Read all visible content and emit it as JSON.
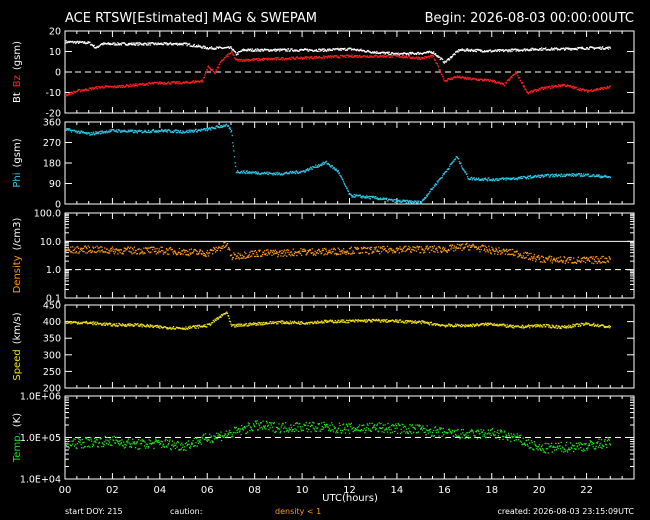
{
  "header": {
    "title": "ACE RTSW[Estimated] MAG & SWEPAM",
    "begin": "Begin: 2026-08-03 00:00:00UTC"
  },
  "x_axis": {
    "label": "UTC(hours)",
    "range": [
      0,
      24
    ],
    "ticks": [
      "00",
      "02",
      "04",
      "06",
      "08",
      "10",
      "12",
      "14",
      "16",
      "18",
      "20",
      "22"
    ]
  },
  "footer": {
    "start_doy": "start DOY: 215",
    "caution": "caution:",
    "density_note": "density < 1",
    "created": "created: 2026-08-03 23:15:09UTC"
  },
  "colors": {
    "bt": "#ffffff",
    "bz": "#ff2020",
    "phi": "#30c8e8",
    "density": "#ff9a1a",
    "speed": "#f0e020",
    "temp": "#20e020",
    "caution": "#ff9a1a",
    "axis": "#ffffff"
  },
  "panels": [
    {
      "id": "mag",
      "ylabel_parts": [
        {
          "text": "Bt",
          "color": "#ffffff"
        },
        {
          "text": "Bz",
          "color": "#ff2020"
        },
        {
          "text": "(gsm)",
          "color": "#ffffff"
        }
      ],
      "ticks": [
        "20",
        "10",
        "0",
        "-10",
        "-20"
      ],
      "scale": "linear",
      "ylim": [
        -20,
        20
      ],
      "dashed_lines": [
        0
      ]
    },
    {
      "id": "phi",
      "ylabel_parts": [
        {
          "text": "Phi",
          "color": "#30c8e8"
        },
        {
          "text": "(gsm)",
          "color": "#ffffff"
        }
      ],
      "ticks": [
        "360",
        "270",
        "180",
        "90",
        "0"
      ],
      "scale": "linear",
      "ylim": [
        0,
        360
      ],
      "dashed_lines": []
    },
    {
      "id": "density",
      "ylabel_parts": [
        {
          "text": "Density",
          "color": "#ff9a1a"
        },
        {
          "text": "(/cm3)",
          "color": "#ffffff"
        }
      ],
      "ticks": [
        "100.0",
        "10.0",
        "1.0",
        "0.1"
      ],
      "scale": "log",
      "ylim": [
        0.1,
        100
      ],
      "dashed_lines": [
        1
      ],
      "solid_lines": [
        10
      ]
    },
    {
      "id": "speed",
      "ylabel_parts": [
        {
          "text": "Speed",
          "color": "#f0e020"
        },
        {
          "text": "(km/s)",
          "color": "#ffffff"
        }
      ],
      "ticks": [
        "450",
        "400",
        "350",
        "300",
        "250",
        "200"
      ],
      "scale": "linear",
      "ylim": [
        200,
        450
      ],
      "dashed_lines": []
    },
    {
      "id": "temp",
      "ylabel_parts": [
        {
          "text": "Temp.",
          "color": "#20e020"
        },
        {
          "text": "(K)",
          "color": "#ffffff"
        }
      ],
      "ticks": [
        "1.0E+06",
        "1.0E+05",
        "1.0E+04"
      ],
      "scale": "log",
      "ylim": [
        10000,
        1000000
      ],
      "dashed_lines": [
        100000
      ]
    }
  ],
  "chart_data": {
    "type": "scatter",
    "x_unit": "UTC hours",
    "series": [
      {
        "name": "Bt",
        "panel": "mag",
        "color": "#ffffff",
        "points": [
          [
            0,
            15
          ],
          [
            1,
            14.5
          ],
          [
            1.3,
            12
          ],
          [
            1.5,
            14
          ],
          [
            2,
            14
          ],
          [
            3,
            14
          ],
          [
            4,
            14
          ],
          [
            5,
            14
          ],
          [
            5.5,
            13
          ],
          [
            6,
            12
          ],
          [
            6.5,
            12
          ],
          [
            7,
            12
          ],
          [
            7.2,
            9
          ],
          [
            7.5,
            11
          ],
          [
            8,
            11
          ],
          [
            9,
            11
          ],
          [
            10,
            11
          ],
          [
            11,
            11
          ],
          [
            12,
            11.5
          ],
          [
            13,
            10
          ],
          [
            14,
            9
          ],
          [
            15,
            9.5
          ],
          [
            15.5,
            10
          ],
          [
            16,
            5
          ],
          [
            16.3,
            8
          ],
          [
            16.6,
            11
          ],
          [
            17,
            11
          ],
          [
            18,
            10.5
          ],
          [
            19,
            11
          ],
          [
            20,
            11.5
          ],
          [
            21,
            11.5
          ],
          [
            22,
            12
          ],
          [
            23,
            12
          ]
        ]
      },
      {
        "name": "Bz",
        "panel": "mag",
        "color": "#ff2020",
        "points": [
          [
            0,
            -11
          ],
          [
            0.5,
            -9
          ],
          [
            1,
            -8
          ],
          [
            1.5,
            -7
          ],
          [
            2,
            -7
          ],
          [
            3,
            -6
          ],
          [
            4,
            -5
          ],
          [
            5,
            -5
          ],
          [
            5.8,
            -4
          ],
          [
            6,
            3
          ],
          [
            6.3,
            0
          ],
          [
            6.6,
            6
          ],
          [
            7,
            10
          ],
          [
            7.2,
            6
          ],
          [
            12,
            8
          ],
          [
            13,
            8
          ],
          [
            14,
            8
          ],
          [
            15,
            7
          ],
          [
            15.5,
            8
          ],
          [
            16,
            -4
          ],
          [
            16.5,
            -2
          ],
          [
            17,
            -3
          ],
          [
            18,
            -4
          ],
          [
            18.5,
            -6
          ],
          [
            19,
            0
          ],
          [
            19.5,
            -10
          ],
          [
            20,
            -8
          ],
          [
            21,
            -6
          ],
          [
            22,
            -9
          ],
          [
            23,
            -7
          ]
        ]
      },
      {
        "name": "Phi",
        "panel": "phi",
        "color": "#30c8e8",
        "points": [
          [
            0,
            330
          ],
          [
            1,
            310
          ],
          [
            2,
            325
          ],
          [
            3,
            320
          ],
          [
            4,
            325
          ],
          [
            5,
            320
          ],
          [
            6,
            330
          ],
          [
            6.8,
            350
          ],
          [
            7,
            320
          ],
          [
            7.2,
            145
          ],
          [
            8,
            140
          ],
          [
            9,
            135
          ],
          [
            10,
            145
          ],
          [
            11,
            185
          ],
          [
            11.5,
            145
          ],
          [
            12,
            40
          ],
          [
            13,
            30
          ],
          [
            14,
            15
          ],
          [
            15,
            10
          ],
          [
            16,
            140
          ],
          [
            16.5,
            210
          ],
          [
            17,
            115
          ],
          [
            18,
            110
          ],
          [
            19,
            115
          ],
          [
            20,
            125
          ],
          [
            21,
            130
          ],
          [
            22,
            130
          ],
          [
            23,
            120
          ]
        ]
      },
      {
        "name": "Density",
        "panel": "density",
        "color": "#ff9a1a",
        "points": [
          [
            0,
            5
          ],
          [
            1,
            5.5
          ],
          [
            2,
            5
          ],
          [
            3,
            5
          ],
          [
            4,
            5
          ],
          [
            5,
            4.5
          ],
          [
            6,
            4
          ],
          [
            6.8,
            8
          ],
          [
            7,
            3
          ],
          [
            8,
            4
          ],
          [
            9,
            4
          ],
          [
            10,
            4.5
          ],
          [
            11,
            4.5
          ],
          [
            12,
            5
          ],
          [
            13,
            5
          ],
          [
            14,
            5.5
          ],
          [
            15,
            5.5
          ],
          [
            16,
            5.5
          ],
          [
            17,
            7
          ],
          [
            18,
            5
          ],
          [
            19,
            4
          ],
          [
            20,
            2.5
          ],
          [
            21,
            2.3
          ],
          [
            22,
            2.2
          ],
          [
            23,
            2.5
          ]
        ]
      },
      {
        "name": "Speed",
        "panel": "speed",
        "color": "#f0e020",
        "points": [
          [
            0,
            400
          ],
          [
            1,
            398
          ],
          [
            2,
            392
          ],
          [
            3,
            392
          ],
          [
            4,
            385
          ],
          [
            5,
            382
          ],
          [
            6,
            390
          ],
          [
            6.8,
            430
          ],
          [
            7,
            388
          ],
          [
            8,
            395
          ],
          [
            9,
            400
          ],
          [
            10,
            398
          ],
          [
            11,
            402
          ],
          [
            12,
            403
          ],
          [
            13,
            405
          ],
          [
            14,
            403
          ],
          [
            15,
            400
          ],
          [
            16,
            390
          ],
          [
            17,
            390
          ],
          [
            18,
            395
          ],
          [
            19,
            385
          ],
          [
            20,
            390
          ],
          [
            21,
            385
          ],
          [
            22,
            395
          ],
          [
            23,
            385
          ]
        ]
      },
      {
        "name": "Temp",
        "panel": "temp",
        "color": "#20e020",
        "points": [
          [
            0,
            70000
          ],
          [
            1,
            80000
          ],
          [
            2,
            85000
          ],
          [
            3,
            70000
          ],
          [
            4,
            75000
          ],
          [
            5,
            65000
          ],
          [
            6,
            100000
          ],
          [
            7,
            130000
          ],
          [
            8,
            200000
          ],
          [
            9,
            180000
          ],
          [
            10,
            190000
          ],
          [
            11,
            180000
          ],
          [
            12,
            170000
          ],
          [
            13,
            180000
          ],
          [
            14,
            170000
          ],
          [
            15,
            160000
          ],
          [
            16,
            130000
          ],
          [
            17,
            120000
          ],
          [
            18,
            130000
          ],
          [
            19,
            100000
          ],
          [
            20,
            55000
          ],
          [
            21,
            60000
          ],
          [
            22,
            65000
          ],
          [
            23,
            80000
          ]
        ]
      }
    ]
  }
}
